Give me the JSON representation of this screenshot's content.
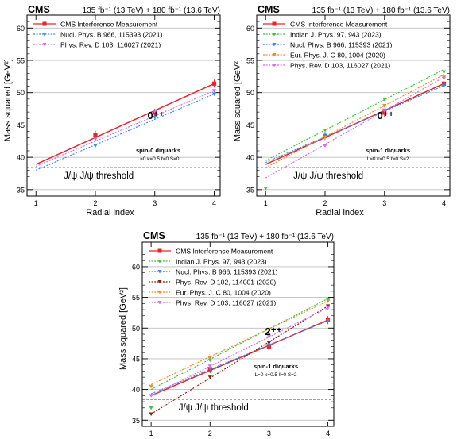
{
  "chart_data": [
    {
      "type": "line",
      "experiment": "CMS",
      "lumi": "135 fb⁻¹ (13 TeV) + 180 fb⁻¹ (13.6 TeV)",
      "xlabel": "Radial index",
      "ylabel": "Mass squared [GeV²]",
      "xlim": [
        0.85,
        4.1
      ],
      "ylim": [
        34,
        62
      ],
      "xticks": [
        1,
        2,
        3,
        4
      ],
      "yticks": [
        35,
        40,
        45,
        50,
        55,
        60
      ],
      "grid": "horizontal",
      "legend": "top-left",
      "state": "0⁺⁺",
      "diquark_title": "spin-0 diquarks",
      "diquark_params": "L=0 κ=0.5 ℓ=0 S=0",
      "threshold": {
        "label": "J/ψ J/ψ threshold",
        "y": 38.4
      },
      "series": [
        {
          "name": "CMS Interference Measurement",
          "color": "#e8242a",
          "x": [
            2,
            3,
            4
          ],
          "y": [
            43.5,
            46.9,
            51.4
          ],
          "fit": [
            1,
            4,
            38.9,
            51.4
          ]
        },
        {
          "name": "Nucl. Phys. B 966, 115393 (2021)",
          "color": "#3c8ae8",
          "x": [
            2,
            3,
            4
          ],
          "y": [
            41.8,
            46.2,
            49.8
          ],
          "fit": [
            1,
            4,
            38.0,
            49.8
          ]
        },
        {
          "name": "Phys. Rev. D 103, 116027 (2021)",
          "color": "#d070e8",
          "x": [
            2,
            3,
            4
          ],
          "y": [
            42.8,
            47.1,
            50.3
          ],
          "fit": [
            1,
            4,
            38.6,
            50.3
          ]
        }
      ]
    },
    {
      "type": "line",
      "experiment": "CMS",
      "lumi": "135 fb⁻¹ (13 TeV) + 180 fb⁻¹ (13.6 TeV)",
      "xlabel": "Radial index",
      "ylabel": "Mass squared [GeV²]",
      "xlim": [
        0.85,
        4.1
      ],
      "ylim": [
        34,
        62
      ],
      "xticks": [
        1,
        2,
        3,
        4
      ],
      "yticks": [
        35,
        40,
        45,
        50,
        55,
        60
      ],
      "grid": "horizontal",
      "legend": "top-left",
      "state": "0⁺⁺",
      "diquark_title": "spin-1 diquarks",
      "diquark_params": "L=0 κ=0.5 ℓ=0 S=2",
      "threshold": {
        "label": "J/ψ J/ψ threshold",
        "y": 38.4
      },
      "series": [
        {
          "name": "CMS Interference Measurement",
          "color": "#e8242a",
          "x": [
            2,
            3,
            4
          ],
          "y": [
            43.3,
            46.9,
            51.4
          ],
          "fit": [
            1,
            4,
            38.9,
            51.4
          ]
        },
        {
          "name": "Indian J. Phys. 97, 943 (2023)",
          "color": "#3fc33f",
          "x": [
            1,
            2,
            3,
            4
          ],
          "y": [
            35.2,
            44.2,
            49.0,
            53.2
          ],
          "fit": [
            1,
            4,
            39.5,
            53.6
          ]
        },
        {
          "name": "Nucl. Phys. B 966, 115393 (2021)",
          "color": "#3c8ae8",
          "x": [
            2,
            3,
            4
          ],
          "y": [
            43.4,
            47.3,
            51.1
          ],
          "fit": [
            1,
            4,
            39.2,
            51.1
          ]
        },
        {
          "name": "Eur. Phys. J. C 80, 1004 (2020)",
          "color": "#f08a30",
          "x": [
            2,
            3,
            4
          ],
          "y": [
            43.1,
            48.0,
            52.4
          ],
          "fit": [
            1,
            4,
            38.4,
            52.8
          ]
        },
        {
          "name": "Phys. Rev. D 103, 116027 (2021)",
          "color": "#d070e8",
          "x": [
            2,
            3,
            4
          ],
          "y": [
            41.8,
            47.2,
            52.2
          ],
          "fit": [
            1,
            4,
            36.8,
            52.4
          ]
        }
      ]
    },
    {
      "type": "line",
      "experiment": "CMS",
      "lumi": "135 fb⁻¹ (13 TeV) + 180 fb⁻¹ (13.6 TeV)",
      "xlabel": "Radial index",
      "ylabel": "Mass squared [GeV²]",
      "xlim": [
        0.85,
        4.1
      ],
      "ylim": [
        34,
        64
      ],
      "xticks": [
        1,
        2,
        3,
        4
      ],
      "yticks": [
        35,
        40,
        45,
        50,
        55,
        60
      ],
      "grid": "horizontal",
      "legend": "top-left",
      "state": "2⁺⁺",
      "diquark_title": "spin-1 diquarks",
      "diquark_params": "L=0 κ=0.5 ℓ=0 S=2",
      "threshold": {
        "label": "J/ψ J/ψ threshold",
        "y": 38.4
      },
      "series": [
        {
          "name": "CMS Interference Measurement",
          "color": "#e8242a",
          "x": [
            2,
            3,
            4
          ],
          "y": [
            43.3,
            46.9,
            51.3
          ],
          "fit": [
            1,
            4,
            39.0,
            51.3
          ]
        },
        {
          "name": "Indian J. Phys. 97, 943 (2023)",
          "color": "#3fc33f",
          "x": [
            1,
            2,
            3,
            4
          ],
          "y": [
            37.0,
            44.8,
            49.8,
            54.6
          ],
          "fit": [
            1,
            4,
            40.0,
            54.8
          ]
        },
        {
          "name": "Nucl. Phys. B 966, 115393 (2021)",
          "color": "#3c8ae8",
          "x": [
            2,
            3,
            4
          ],
          "y": [
            43.4,
            47.2,
            51.2
          ],
          "fit": [
            1,
            4,
            39.3,
            51.2
          ]
        },
        {
          "name": "Phys. Rev. D 102, 114001 (2020)",
          "color": "#8b2010",
          "x": [
            1,
            2,
            3,
            4
          ],
          "y": [
            36.0,
            42.0,
            47.6,
            53.6
          ],
          "fit": [
            1,
            4,
            36.0,
            53.6
          ]
        },
        {
          "name": "Eur. Phys. J. C 80, 1004 (2020)",
          "color": "#f08a30",
          "x": [
            1,
            2,
            3,
            4
          ],
          "y": [
            40.5,
            45.2,
            49.8,
            54.4
          ],
          "fit": [
            1,
            4,
            40.8,
            54.4
          ]
        },
        {
          "name": "Phys. Rev. D 103, 116027 (2021)",
          "color": "#d070e8",
          "x": [
            1,
            2,
            3,
            4
          ],
          "y": [
            39.0,
            43.8,
            48.6,
            53.3
          ],
          "fit": [
            1,
            4,
            39.0,
            53.3
          ]
        }
      ]
    }
  ]
}
